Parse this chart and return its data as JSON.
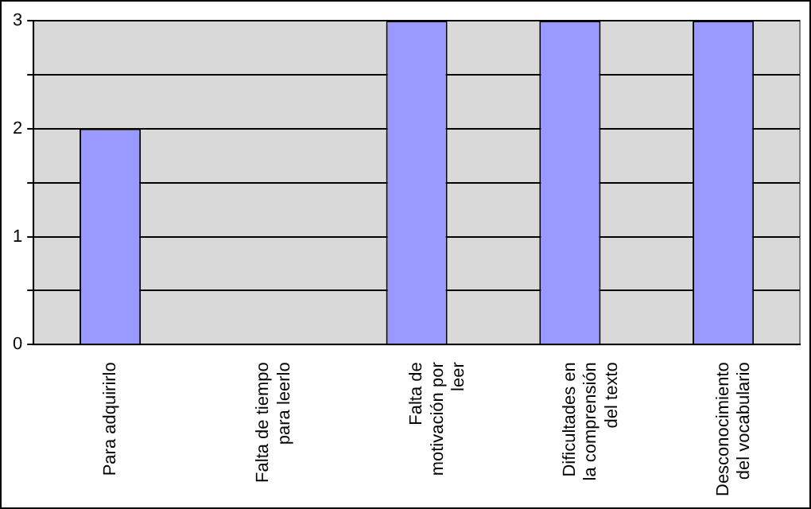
{
  "chart_data": {
    "type": "bar",
    "categories": [
      "Para adquirirlo",
      "Falta de tiempo para leerlo",
      "Falta de motivación por leer",
      "Dificultades en la comprensión del texto",
      "Desconocimiento del vocabulario"
    ],
    "values": [
      2,
      0,
      3,
      3,
      3
    ],
    "color": "#9999ff",
    "ylim": [
      0,
      3
    ],
    "yticks": [
      0,
      {
        "value": 0.5,
        "label": null
      },
      1,
      {
        "value": 1.5,
        "label": null
      },
      2,
      {
        "value": 2.5,
        "label": null
      },
      3
    ],
    "grid": "y",
    "legend": false
  }
}
